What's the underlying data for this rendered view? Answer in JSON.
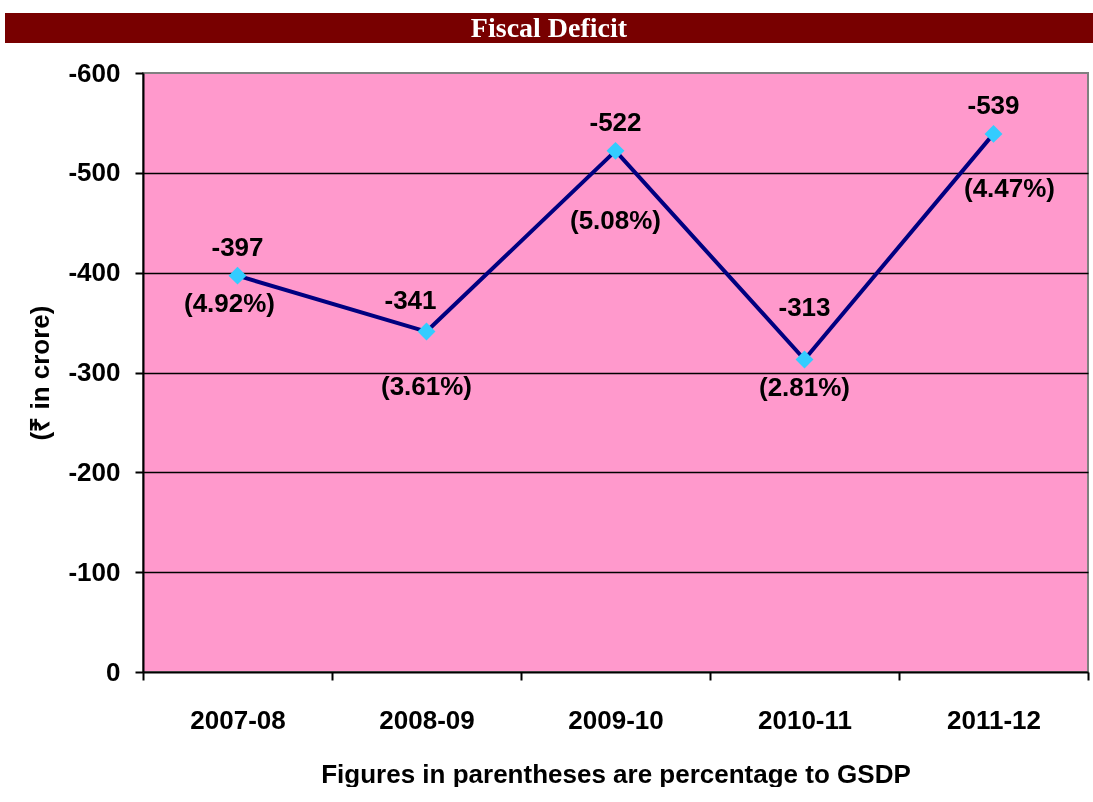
{
  "chart_data": {
    "type": "line",
    "title": "Fiscal Deficit",
    "xlabel": "Figures in parentheses are percentage to GSDP",
    "ylabel": "(₹ in crore)",
    "categories": [
      "2007-08",
      "2008-09",
      "2009-10",
      "2010-11",
      "2011-12"
    ],
    "series": [
      {
        "color": "#000080",
        "colors": [
          "#33ccff",
          "#33ccff",
          "#33ccff",
          "#33ccff",
          "#33ccff"
        ],
        "values": [
          -397,
          -341,
          -522,
          -313,
          -539
        ]
      }
    ],
    "ylim": [
      0,
      -600
    ],
    "yticks": [
      0,
      -100,
      -200,
      -300,
      -400,
      -500,
      -600
    ],
    "grid": "y",
    "marker": "diamond",
    "line_style": "solid",
    "data_labels": true,
    "annotations": [
      {
        "text": "(4.92%)",
        "x": "2007-08",
        "y": -397
      },
      {
        "text": "(3.61%)",
        "x": "2008-09",
        "y": -341
      },
      {
        "text": "(5.08%)",
        "x": "2009-10",
        "y": -522
      },
      {
        "text": "(2.81%)",
        "x": "2010-11",
        "y": -313
      },
      {
        "text": "(4.47%)",
        "x": "2011-12",
        "y": -539
      }
    ]
  }
}
